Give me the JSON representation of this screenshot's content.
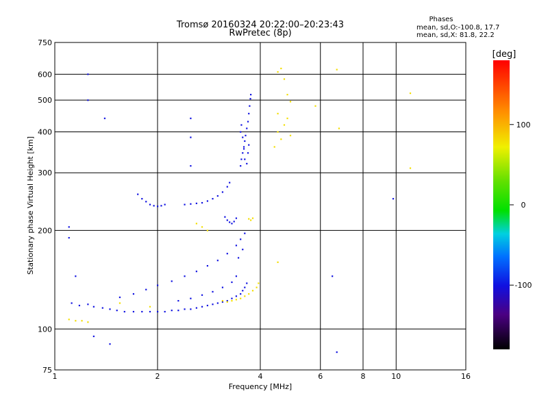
{
  "chart_data": {
    "type": "scatter",
    "title": "Tromsø 20160324 20:22:00–20:23:43",
    "subtitle": "RwPretec (8p)",
    "xlabel": "Frequency [MHz]",
    "ylabel": "Stationary phase Virtual Height [km]",
    "x_scale": "log",
    "y_scale": "log",
    "xlim": [
      1,
      16
    ],
    "ylim": [
      75,
      750
    ],
    "x_ticks": [
      1,
      2,
      4,
      6,
      8,
      10,
      16
    ],
    "x_ticklabels": [
      "1",
      "2",
      "4",
      "6",
      "8",
      "10",
      "16"
    ],
    "y_ticks": [
      75,
      100,
      200,
      300,
      400,
      500,
      600,
      750
    ],
    "y_ticklabels": [
      "75",
      "100",
      "200",
      "300",
      "400",
      "500",
      "600",
      "750"
    ],
    "grid": true,
    "stats": {
      "title": "Phases",
      "line_o": "mean, sd,O:-100.8, 17.7",
      "line_x": "mean, sd,X:  81.8, 22.2"
    },
    "colorbar": {
      "label": "[deg]",
      "range": [
        -180,
        180
      ],
      "ticks": [
        100,
        0,
        -100
      ],
      "ticklabels": [
        "100",
        "0",
        "-100"
      ]
    },
    "series": [
      {
        "name": "O",
        "color_phase": -100,
        "points": [
          [
            1.12,
            120
          ],
          [
            1.18,
            118
          ],
          [
            1.25,
            119
          ],
          [
            1.3,
            117
          ],
          [
            1.38,
            116
          ],
          [
            1.45,
            115
          ],
          [
            1.52,
            114
          ],
          [
            1.6,
            113
          ],
          [
            1.7,
            113
          ],
          [
            1.8,
            113
          ],
          [
            1.9,
            113
          ],
          [
            2.0,
            113
          ],
          [
            2.1,
            113
          ],
          [
            2.2,
            114
          ],
          [
            2.3,
            114
          ],
          [
            2.4,
            115
          ],
          [
            2.5,
            115
          ],
          [
            2.6,
            116
          ],
          [
            2.7,
            117
          ],
          [
            2.8,
            118
          ],
          [
            2.9,
            119
          ],
          [
            3.0,
            120
          ],
          [
            3.1,
            121
          ],
          [
            3.2,
            122
          ],
          [
            3.3,
            124
          ],
          [
            3.4,
            126
          ],
          [
            3.5,
            128
          ],
          [
            3.55,
            131
          ],
          [
            3.6,
            134
          ],
          [
            3.65,
            138
          ],
          [
            1.55,
            125
          ],
          [
            1.7,
            128
          ],
          [
            1.85,
            132
          ],
          [
            2.0,
            136
          ],
          [
            2.2,
            140
          ],
          [
            2.4,
            145
          ],
          [
            2.6,
            150
          ],
          [
            2.8,
            156
          ],
          [
            3.0,
            162
          ],
          [
            3.2,
            170
          ],
          [
            3.4,
            180
          ],
          [
            3.5,
            188
          ],
          [
            3.6,
            196
          ],
          [
            3.55,
            175
          ],
          [
            3.45,
            165
          ],
          [
            2.3,
            122
          ],
          [
            2.5,
            124
          ],
          [
            2.7,
            127
          ],
          [
            2.9,
            130
          ],
          [
            3.1,
            134
          ],
          [
            3.3,
            139
          ],
          [
            3.4,
            145
          ],
          [
            1.75,
            258
          ],
          [
            1.8,
            250
          ],
          [
            1.85,
            245
          ],
          [
            1.9,
            240
          ],
          [
            1.95,
            238
          ],
          [
            2.0,
            237
          ],
          [
            2.05,
            238
          ],
          [
            2.1,
            240
          ],
          [
            2.4,
            240
          ],
          [
            2.5,
            241
          ],
          [
            2.6,
            242
          ],
          [
            2.7,
            243
          ],
          [
            2.8,
            246
          ],
          [
            2.9,
            250
          ],
          [
            3.0,
            255
          ],
          [
            3.1,
            262
          ],
          [
            3.2,
            272
          ],
          [
            3.25,
            280
          ],
          [
            3.5,
            315
          ],
          [
            3.52,
            330
          ],
          [
            3.55,
            345
          ],
          [
            3.58,
            360
          ],
          [
            3.6,
            375
          ],
          [
            3.62,
            390
          ],
          [
            3.65,
            410
          ],
          [
            3.68,
            430
          ],
          [
            3.7,
            455
          ],
          [
            3.72,
            480
          ],
          [
            3.74,
            505
          ],
          [
            3.75,
            520
          ],
          [
            3.5,
            400
          ],
          [
            3.52,
            420
          ],
          [
            3.55,
            385
          ],
          [
            3.58,
            355
          ],
          [
            3.6,
            330
          ],
          [
            3.65,
            320
          ],
          [
            3.68,
            345
          ],
          [
            3.7,
            365
          ],
          [
            3.15,
            220
          ],
          [
            3.2,
            215
          ],
          [
            3.25,
            212
          ],
          [
            3.3,
            210
          ],
          [
            3.35,
            213
          ],
          [
            3.4,
            218
          ],
          [
            1.25,
            600
          ],
          [
            1.25,
            500
          ],
          [
            1.4,
            440
          ],
          [
            1.1,
            190
          ],
          [
            1.1,
            205
          ],
          [
            1.15,
            145
          ],
          [
            1.3,
            95
          ],
          [
            1.45,
            90
          ],
          [
            2.5,
            315
          ],
          [
            2.5,
            385
          ],
          [
            2.5,
            440
          ],
          [
            6.7,
            85
          ],
          [
            6.5,
            145
          ],
          [
            9.8,
            250
          ]
        ]
      },
      {
        "name": "X",
        "color_phase": 80,
        "points": [
          [
            1.1,
            107
          ],
          [
            1.15,
            106
          ],
          [
            1.2,
            106
          ],
          [
            1.25,
            105
          ],
          [
            3.1,
            122
          ],
          [
            3.2,
            121
          ],
          [
            3.3,
            122
          ],
          [
            3.4,
            123
          ],
          [
            3.5,
            124
          ],
          [
            3.6,
            126
          ],
          [
            3.7,
            128
          ],
          [
            3.8,
            131
          ],
          [
            3.9,
            134
          ],
          [
            3.95,
            138
          ],
          [
            3.7,
            217
          ],
          [
            3.75,
            215
          ],
          [
            3.8,
            218
          ],
          [
            2.7,
            205
          ],
          [
            2.8,
            200
          ],
          [
            2.6,
            210
          ],
          [
            4.5,
            610
          ],
          [
            4.6,
            625
          ],
          [
            4.7,
            580
          ],
          [
            4.5,
            400
          ],
          [
            4.6,
            380
          ],
          [
            4.7,
            420
          ],
          [
            4.8,
            440
          ],
          [
            4.9,
            390
          ],
          [
            4.4,
            360
          ],
          [
            4.5,
            455
          ],
          [
            4.8,
            520
          ],
          [
            4.9,
            495
          ],
          [
            5.8,
            480
          ],
          [
            6.7,
            620
          ],
          [
            6.8,
            410
          ],
          [
            11,
            525
          ],
          [
            11,
            310
          ],
          [
            1.55,
            120
          ],
          [
            1.9,
            117
          ],
          [
            4.5,
            160
          ]
        ]
      }
    ]
  }
}
